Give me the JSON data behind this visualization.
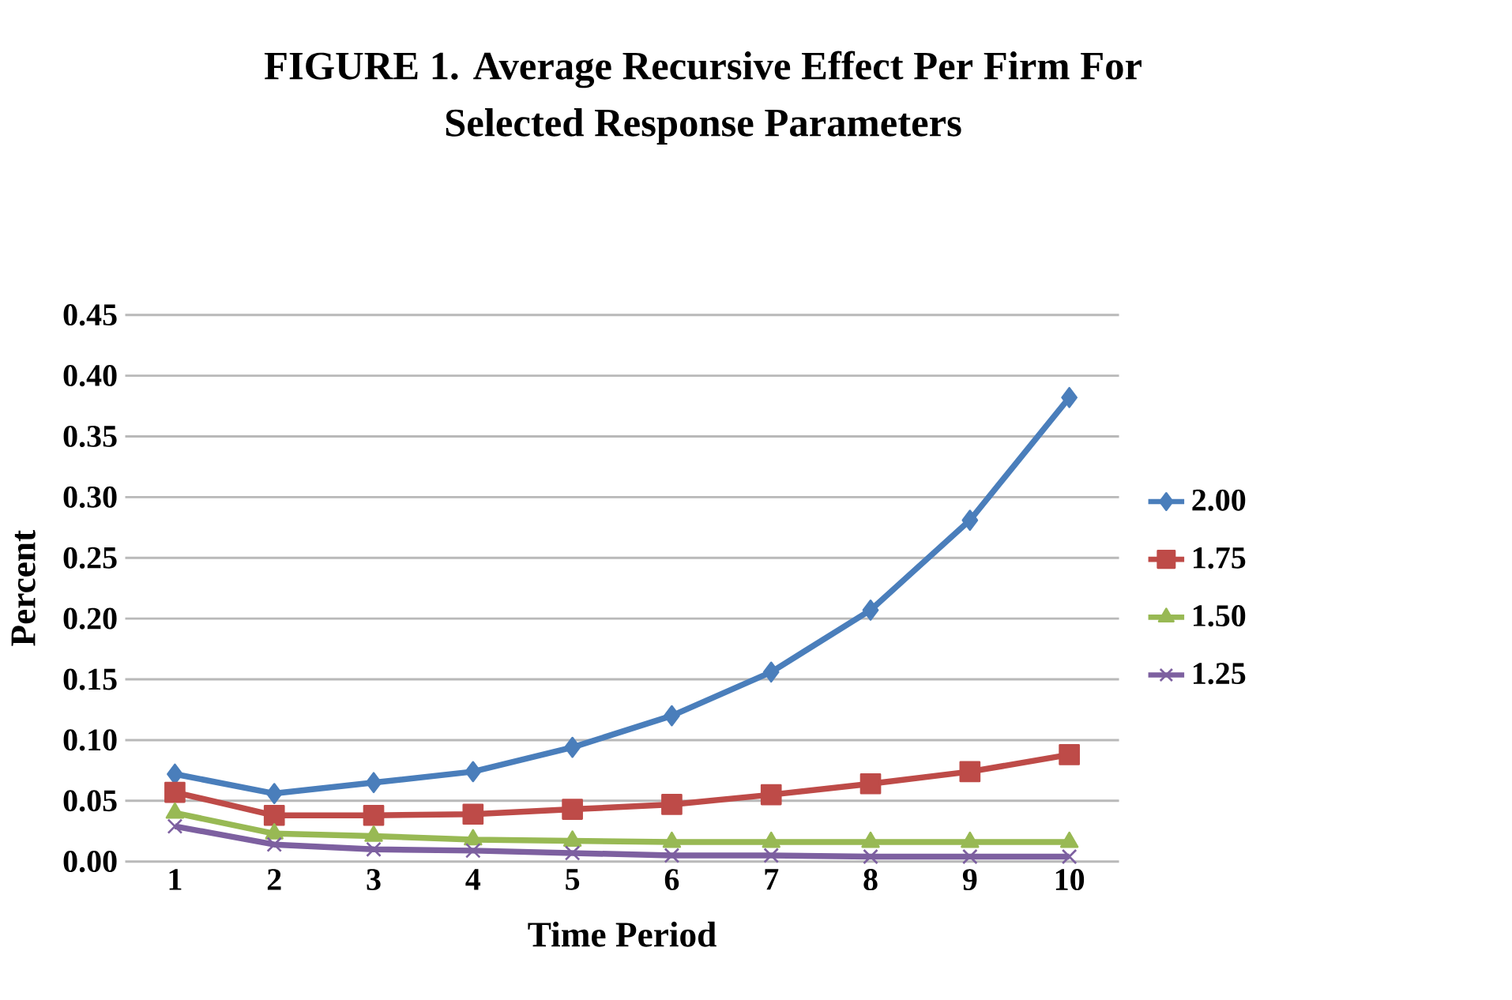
{
  "chart_data": {
    "type": "line",
    "title": "FIGURE 1. Average Recursive Effect Per Firm For\nSelected Response Parameters",
    "xlabel": "Time Period",
    "ylabel": "Percent",
    "categories": [
      "1",
      "2",
      "3",
      "4",
      "5",
      "6",
      "7",
      "8",
      "9",
      "10"
    ],
    "series": [
      {
        "name": "2.00",
        "color": "#4a7ebb",
        "marker": "diamond",
        "values": [
          0.072,
          0.056,
          0.065,
          0.074,
          0.094,
          0.12,
          0.156,
          0.207,
          0.281,
          0.382
        ]
      },
      {
        "name": "1.75",
        "color": "#be4b48",
        "marker": "square",
        "values": [
          0.057,
          0.038,
          0.038,
          0.039,
          0.043,
          0.047,
          0.055,
          0.064,
          0.074,
          0.088
        ]
      },
      {
        "name": "1.50",
        "color": "#98b954",
        "marker": "triangle",
        "values": [
          0.04,
          0.023,
          0.021,
          0.018,
          0.017,
          0.016,
          0.016,
          0.016,
          0.016,
          0.016
        ]
      },
      {
        "name": "1.25",
        "color": "#7d60a0",
        "marker": "cross",
        "values": [
          0.029,
          0.014,
          0.01,
          0.009,
          0.007,
          0.005,
          0.005,
          0.004,
          0.004,
          0.004
        ]
      }
    ],
    "ylim": [
      0,
      0.45
    ],
    "yticks": [
      {
        "value": 0,
        "label": "0.00"
      },
      {
        "value": 0.05,
        "label": "0.05"
      },
      {
        "value": 0.1,
        "label": "0.10"
      },
      {
        "value": 0.15,
        "label": "0.15"
      },
      {
        "value": 0.2,
        "label": "0.20"
      },
      {
        "value": 0.25,
        "label": "0.25"
      },
      {
        "value": 0.3,
        "label": "0.30"
      },
      {
        "value": 0.35,
        "label": "0.35"
      },
      {
        "value": 0.4,
        "label": "0.40"
      },
      {
        "value": 0.45,
        "label": "0.45"
      }
    ],
    "grid": "y",
    "legend": "right"
  }
}
